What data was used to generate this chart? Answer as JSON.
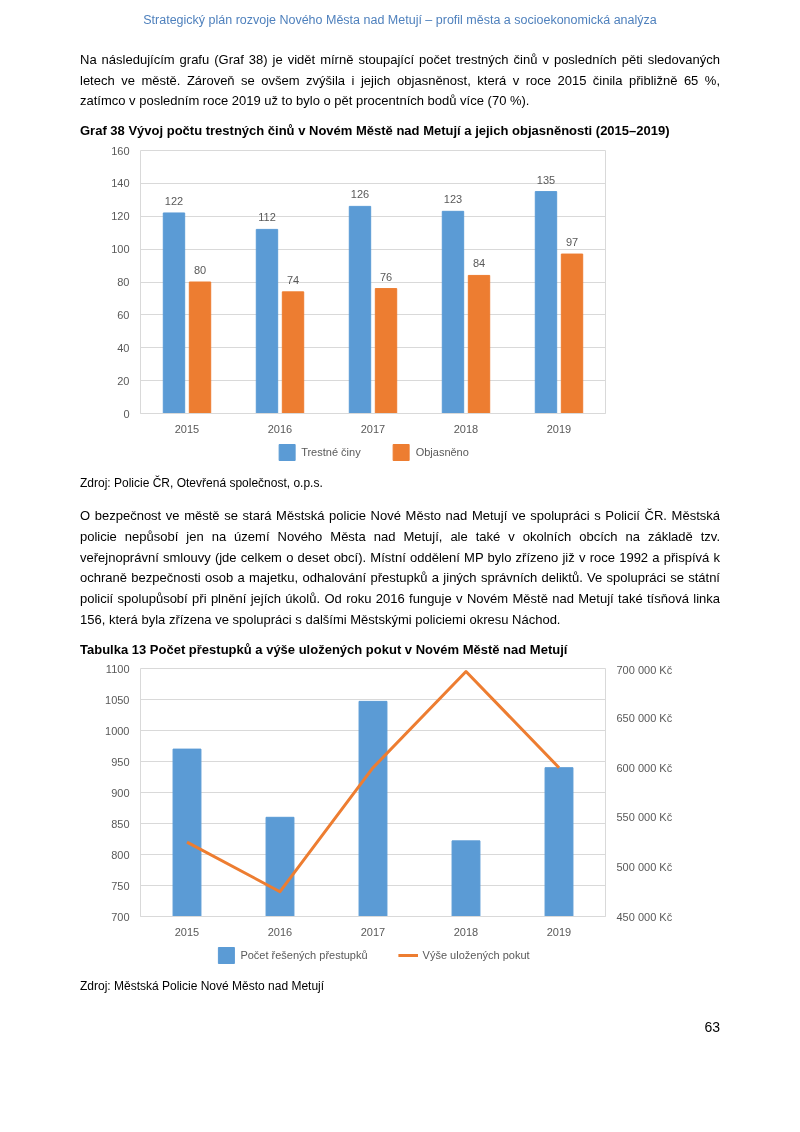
{
  "chart_data": [
    {
      "type": "bar",
      "title": "Graf 38    Vývoj počtu trestných činů v Novém Městě nad Metují a jejich objasněnosti (2015–2019)",
      "annotations": [
        "Strategický plán rozvoje Nového Města nad Metují – profil města a socioekonomická analýza",
        "Na následujícím grafu (Graf 38) je vidět mírně stoupající počet trestných činů v posledních pěti sledovaných letech ve městě. Zároveň se ovšem zvýšila i jejich objasněnost, která v roce 2015 činila přibližně 65 %, zatímco v posledním roce 2019 už to bylo o pět procentních bodů více (70 %).",
        "Zdroj:  Policie ČR, Otevřená společnost, o.p.s."
      ],
      "categories": [
        "2015",
        "2016",
        "2017",
        "2018",
        "2019"
      ],
      "series": [
        {
          "name": "Trestné činy",
          "color": "#5b9bd5",
          "values": [
            122,
            112,
            126,
            123,
            135
          ]
        },
        {
          "name": "Objasněno",
          "color": "#ed7d31",
          "values": [
            80,
            74,
            76,
            84,
            97
          ]
        }
      ],
      "ylim": [
        0,
        160
      ],
      "yticks": [
        0,
        20,
        40,
        60,
        80,
        100,
        120,
        140,
        160
      ],
      "grid": "y",
      "legend": "bottom",
      "data_labels": true
    },
    {
      "type": "bar",
      "title": "Tabulka 13        Počet přestupků a výše uložených pokut v Novém Městě nad Metují",
      "annotations": [
        "O bezpečnost ve městě se stará Městská policie Nové Město nad Metují ve spolupráci s Policií ČR. Městská policie nepůsobí jen na území Nového Města nad Metují, ale také v okolních obcích na základě tzv. veřejnoprávní smlouvy (jde celkem o deset obcí). Místní oddělení MP bylo zřízeno již v roce 1992 a přispívá k ochraně bezpečnosti osob a majetku, odhalování přestupků a jiných správních deliktů. Ve spolupráci se státní policií spolupůsobí při plnění jejích úkolů. Od roku 2016 funguje v Novém Městě nad Metují také tísňová linka 156, která byla zřízena ve spolupráci s dalšími Městskými policiemi okresu Náchod.",
        "Zdroj:     Městská Policie Nové Město nad Metují",
        "63"
      ],
      "categories": [
        "2015",
        "2016",
        "2017",
        "2018",
        "2019"
      ],
      "series": [
        {
          "name": "Počet řešených přestupků",
          "color": "#5b9bd5",
          "values": [
            970,
            860,
            1047,
            822,
            940
          ]
        },
        {
          "name": "Výše uložených pokut",
          "type": "line",
          "axis": "y2",
          "color": "#ed7d31",
          "values": [
            525000,
            475000,
            600000,
            697000,
            600000
          ]
        }
      ],
      "ylim": [
        700,
        1100
      ],
      "yticks": [
        700,
        750,
        800,
        850,
        900,
        950,
        1000,
        1050,
        1100
      ],
      "y2lim": [
        450000,
        700000
      ],
      "y2ticks": [
        {
          "value": 450000,
          "label": "450 000 Kč"
        },
        {
          "value": 500000,
          "label": "500 000 Kč"
        },
        {
          "value": 550000,
          "label": "550 000 Kč"
        },
        {
          "value": 600000,
          "label": "600 000 Kč"
        },
        {
          "value": 650000,
          "label": "650 000 Kč"
        },
        {
          "value": 700000,
          "label": "700 000 Kč"
        }
      ],
      "grid": "y",
      "legend": "bottom"
    }
  ]
}
